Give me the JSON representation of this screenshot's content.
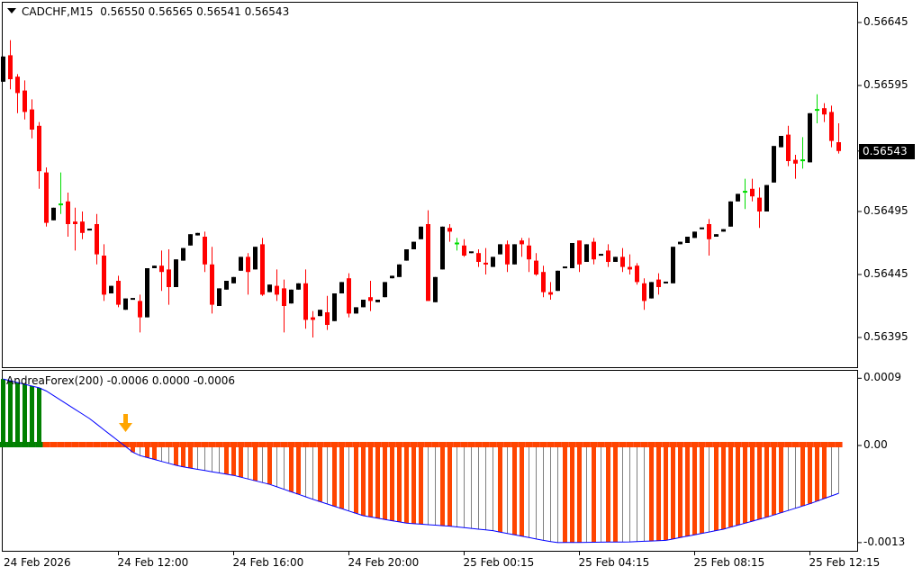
{
  "header": {
    "symbol": "CADCHF,M15",
    "open": "0.56550",
    "high": "0.56565",
    "low": "0.56541",
    "close": "0.56543"
  },
  "colors": {
    "bull": "#000000",
    "bear": "#ff0000",
    "doji": "#00dd00",
    "hist_up": "#008000",
    "hist_orange": "#ff4500",
    "hist_gray": "#808080",
    "signal_line": "#0000ff",
    "arrow": "#ffa500"
  },
  "price_axis": {
    "min": 0.56395,
    "max": 0.56645,
    "labels": [
      "0.56645",
      "0.56595",
      "0.56495",
      "0.56445",
      "0.56395"
    ],
    "current": "0.56543"
  },
  "time_axis": [
    {
      "bar": 0,
      "label": "24 Feb 2026"
    },
    {
      "bar": 16,
      "label": "24 Feb 12:00"
    },
    {
      "bar": 32,
      "label": "24 Feb 16:00"
    },
    {
      "bar": 48,
      "label": "24 Feb 20:00"
    },
    {
      "bar": 64,
      "label": "25 Feb 00:15"
    },
    {
      "bar": 80,
      "label": "25 Feb 04:15"
    },
    {
      "bar": 96,
      "label": "25 Feb 08:15"
    },
    {
      "bar": 112,
      "label": "25 Feb 12:15"
    }
  ],
  "indicator": {
    "name": "AndreaForex(200)",
    "v1": "-0.0006",
    "v2": "0.0000",
    "v3": "-0.0006",
    "axis_labels": [
      {
        "value": 0.0009,
        "text": "0.0009"
      },
      {
        "value": 0,
        "text": "0.00"
      },
      {
        "value": -0.0013,
        "text": "-0.0013"
      }
    ],
    "signal_arrow_bar": 17,
    "line_points": [
      [
        0,
        0.00089
      ],
      [
        5.5,
        0.00076
      ],
      [
        12,
        0.00036
      ],
      [
        16,
        6e-05
      ],
      [
        18.4,
        -0.00012
      ],
      [
        24.6,
        -0.00028
      ],
      [
        32,
        -0.0004
      ],
      [
        37,
        -0.00052
      ],
      [
        43,
        -0.00072
      ],
      [
        50,
        -0.00094
      ],
      [
        56,
        -0.00104
      ],
      [
        62,
        -0.00108
      ],
      [
        68,
        -0.00114
      ],
      [
        75,
        -0.00127
      ],
      [
        77,
        -0.0013
      ],
      [
        87,
        -0.00129
      ],
      [
        92,
        -0.00127
      ],
      [
        100,
        -0.00112
      ],
      [
        106,
        -0.00096
      ],
      [
        112,
        -0.00078
      ],
      [
        116,
        -0.00064
      ]
    ],
    "green_bars": [
      0,
      1,
      2,
      3,
      4,
      5
    ],
    "hidden_bars": [
      6,
      7,
      8,
      9,
      10,
      11,
      12,
      13,
      14,
      15,
      16
    ],
    "orange_bars": [
      18,
      20,
      21,
      24,
      25,
      26,
      31,
      32,
      33,
      35,
      37,
      40,
      41,
      44,
      46,
      47,
      49,
      50,
      51,
      52,
      53,
      54,
      55,
      56,
      57,
      58,
      61,
      62,
      69,
      71,
      72,
      78,
      79,
      80,
      82,
      84,
      85,
      90,
      91,
      92,
      93,
      94,
      95,
      96,
      97,
      99,
      100,
      101,
      102,
      103,
      104,
      105,
      106,
      107,
      108,
      111,
      112,
      113,
      114
    ]
  },
  "chart_data": {
    "type": "candlestick",
    "title": "CADCHF,M15",
    "fields": [
      "open",
      "high",
      "low",
      "close"
    ],
    "candles": [
      [
        0.56598,
        0.56618,
        0.56598,
        0.56618
      ],
      [
        0.56619,
        0.56631,
        0.56592,
        0.566
      ],
      [
        0.56602,
        0.56604,
        0.56573,
        0.56589
      ],
      [
        0.56591,
        0.56599,
        0.56568,
        0.56574
      ],
      [
        0.56576,
        0.56584,
        0.56553,
        0.5656
      ],
      [
        0.56563,
        0.56566,
        0.56513,
        0.56527
      ],
      [
        0.56526,
        0.5653,
        0.56483,
        0.56486
      ],
      [
        0.56488,
        0.56498,
        0.56488,
        0.56498
      ],
      [
        0.56501,
        0.56526,
        0.56493,
        0.56501
      ],
      [
        0.56503,
        0.5651,
        0.56475,
        0.56485
      ],
      [
        0.56487,
        0.56498,
        0.56464,
        0.56485
      ],
      [
        0.56487,
        0.56495,
        0.56473,
        0.56478
      ],
      [
        0.5648,
        0.56481,
        0.5648,
        0.56481
      ],
      [
        0.56485,
        0.56493,
        0.56453,
        0.56461
      ],
      [
        0.5646,
        0.56469,
        0.56424,
        0.56429
      ],
      [
        0.5643,
        0.56436,
        0.5643,
        0.56436
      ],
      [
        0.5644,
        0.56444,
        0.56419,
        0.56421
      ],
      [
        0.56417,
        0.56426,
        0.56417,
        0.56426
      ],
      [
        0.56425,
        0.56426,
        0.56425,
        0.56426
      ],
      [
        0.56424,
        0.56429,
        0.56399,
        0.56411
      ],
      [
        0.56411,
        0.5645,
        0.56411,
        0.5645
      ],
      [
        0.5645,
        0.56452,
        0.5645,
        0.56452
      ],
      [
        0.56452,
        0.56464,
        0.56432,
        0.56447
      ],
      [
        0.56449,
        0.56465,
        0.56421,
        0.56435
      ],
      [
        0.56435,
        0.56457,
        0.56435,
        0.56457
      ],
      [
        0.56456,
        0.56466,
        0.56456,
        0.56466
      ],
      [
        0.56468,
        0.56477,
        0.56468,
        0.56477
      ],
      [
        0.56476,
        0.56478,
        0.56476,
        0.56478
      ],
      [
        0.56475,
        0.56479,
        0.56447,
        0.56453
      ],
      [
        0.56453,
        0.56467,
        0.56414,
        0.56421
      ],
      [
        0.5642,
        0.56434,
        0.5642,
        0.56434
      ],
      [
        0.56433,
        0.5644,
        0.56433,
        0.5644
      ],
      [
        0.56438,
        0.56443,
        0.56438,
        0.56443
      ],
      [
        0.56448,
        0.56459,
        0.56448,
        0.56459
      ],
      [
        0.56459,
        0.56462,
        0.56429,
        0.56447
      ],
      [
        0.56449,
        0.56467,
        0.56449,
        0.56467
      ],
      [
        0.56469,
        0.56474,
        0.56428,
        0.56429
      ],
      [
        0.56431,
        0.56437,
        0.56431,
        0.56437
      ],
      [
        0.56436,
        0.56449,
        0.56424,
        0.56429
      ],
      [
        0.56434,
        0.56441,
        0.56399,
        0.5642
      ],
      [
        0.56422,
        0.56433,
        0.56422,
        0.56433
      ],
      [
        0.56433,
        0.56438,
        0.56433,
        0.56438
      ],
      [
        0.56438,
        0.56449,
        0.56402,
        0.56409
      ],
      [
        0.56411,
        0.56416,
        0.56395,
        0.56409
      ],
      [
        0.56412,
        0.56417,
        0.56412,
        0.56417
      ],
      [
        0.56415,
        0.56428,
        0.56401,
        0.56405
      ],
      [
        0.56408,
        0.5643,
        0.56408,
        0.5643
      ],
      [
        0.5643,
        0.56439,
        0.5643,
        0.56439
      ],
      [
        0.56442,
        0.56446,
        0.56411,
        0.56414
      ],
      [
        0.56414,
        0.56419,
        0.56414,
        0.56419
      ],
      [
        0.56419,
        0.56425,
        0.56419,
        0.56425
      ],
      [
        0.56427,
        0.5644,
        0.56416,
        0.56424
      ],
      [
        0.56423,
        0.56425,
        0.56423,
        0.56425
      ],
      [
        0.56427,
        0.56439,
        0.56427,
        0.56439
      ],
      [
        0.56442,
        0.56444,
        0.56442,
        0.56444
      ],
      [
        0.56443,
        0.56453,
        0.56443,
        0.56453
      ],
      [
        0.56456,
        0.56465,
        0.56456,
        0.56465
      ],
      [
        0.56465,
        0.56471,
        0.56465,
        0.56471
      ],
      [
        0.56473,
        0.56483,
        0.56473,
        0.56483
      ],
      [
        0.56485,
        0.56496,
        0.56424,
        0.56424
      ],
      [
        0.56423,
        0.56443,
        0.56423,
        0.56443
      ],
      [
        0.56449,
        0.56483,
        0.56449,
        0.56483
      ],
      [
        0.56482,
        0.56485,
        0.56471,
        0.56479
      ],
      [
        0.5647,
        0.56474,
        0.56464,
        0.5647
      ],
      [
        0.56468,
        0.56473,
        0.56459,
        0.5646
      ],
      [
        0.56462,
        0.56463,
        0.56462,
        0.56463
      ],
      [
        0.56462,
        0.56465,
        0.56451,
        0.56455
      ],
      [
        0.56454,
        0.56466,
        0.56445,
        0.56453
      ],
      [
        0.56451,
        0.56459,
        0.56451,
        0.56459
      ],
      [
        0.56461,
        0.56469,
        0.56461,
        0.56469
      ],
      [
        0.56469,
        0.56472,
        0.56447,
        0.56453
      ],
      [
        0.56453,
        0.56469,
        0.56453,
        0.56469
      ],
      [
        0.56472,
        0.56474,
        0.56459,
        0.56469
      ],
      [
        0.56468,
        0.56474,
        0.56447,
        0.56457
      ],
      [
        0.56456,
        0.56462,
        0.56444,
        0.56445
      ],
      [
        0.56447,
        0.56452,
        0.56427,
        0.56431
      ],
      [
        0.56431,
        0.56439,
        0.56425,
        0.56429
      ],
      [
        0.56432,
        0.56448,
        0.56432,
        0.56448
      ],
      [
        0.5645,
        0.56451,
        0.5645,
        0.56451
      ],
      [
        0.5645,
        0.5647,
        0.5645,
        0.5647
      ],
      [
        0.56472,
        0.56472,
        0.56447,
        0.56453
      ],
      [
        0.56455,
        0.56469,
        0.56455,
        0.56469
      ],
      [
        0.56471,
        0.56474,
        0.56453,
        0.56457
      ],
      [
        0.5646,
        0.56461,
        0.5646,
        0.56461
      ],
      [
        0.56464,
        0.56469,
        0.56451,
        0.56455
      ],
      [
        0.56455,
        0.56459,
        0.56455,
        0.56459
      ],
      [
        0.56459,
        0.56466,
        0.56447,
        0.56451
      ],
      [
        0.56451,
        0.56461,
        0.56445,
        0.56449
      ],
      [
        0.56452,
        0.56454,
        0.56437,
        0.56439
      ],
      [
        0.56438,
        0.56442,
        0.56417,
        0.56424
      ],
      [
        0.56426,
        0.56439,
        0.56426,
        0.56439
      ],
      [
        0.56441,
        0.56446,
        0.56429,
        0.56435
      ],
      [
        0.56438,
        0.56439,
        0.56438,
        0.56439
      ],
      [
        0.56438,
        0.56467,
        0.56438,
        0.56467
      ],
      [
        0.56469,
        0.56471,
        0.56469,
        0.56471
      ],
      [
        0.5647,
        0.56475,
        0.5647,
        0.56475
      ],
      [
        0.56474,
        0.56479,
        0.56474,
        0.56479
      ],
      [
        0.56481,
        0.56482,
        0.56481,
        0.56482
      ],
      [
        0.56485,
        0.56489,
        0.5646,
        0.56473
      ],
      [
        0.56475,
        0.56477,
        0.56475,
        0.56477
      ],
      [
        0.56479,
        0.56481,
        0.56479,
        0.56481
      ],
      [
        0.56483,
        0.56503,
        0.56483,
        0.56503
      ],
      [
        0.56503,
        0.56509,
        0.56503,
        0.56509
      ],
      [
        0.56511,
        0.56521,
        0.56497,
        0.56511
      ],
      [
        0.56513,
        0.56521,
        0.56503,
        0.56507
      ],
      [
        0.56506,
        0.56514,
        0.56482,
        0.56495
      ],
      [
        0.56495,
        0.56516,
        0.56495,
        0.56516
      ],
      [
        0.56518,
        0.56547,
        0.56518,
        0.56547
      ],
      [
        0.56546,
        0.56555,
        0.56546,
        0.56555
      ],
      [
        0.56556,
        0.56563,
        0.56531,
        0.56535
      ],
      [
        0.56536,
        0.5654,
        0.56521,
        0.56533
      ],
      [
        0.56536,
        0.56554,
        0.56529,
        0.56536
      ],
      [
        0.56534,
        0.56573,
        0.56534,
        0.56573
      ],
      [
        0.56576,
        0.56588,
        0.56565,
        0.56576
      ],
      [
        0.56577,
        0.56581,
        0.56566,
        0.56572
      ],
      [
        0.56574,
        0.56579,
        0.56546,
        0.56551
      ],
      [
        0.5655,
        0.56565,
        0.56541,
        0.56543
      ]
    ]
  }
}
